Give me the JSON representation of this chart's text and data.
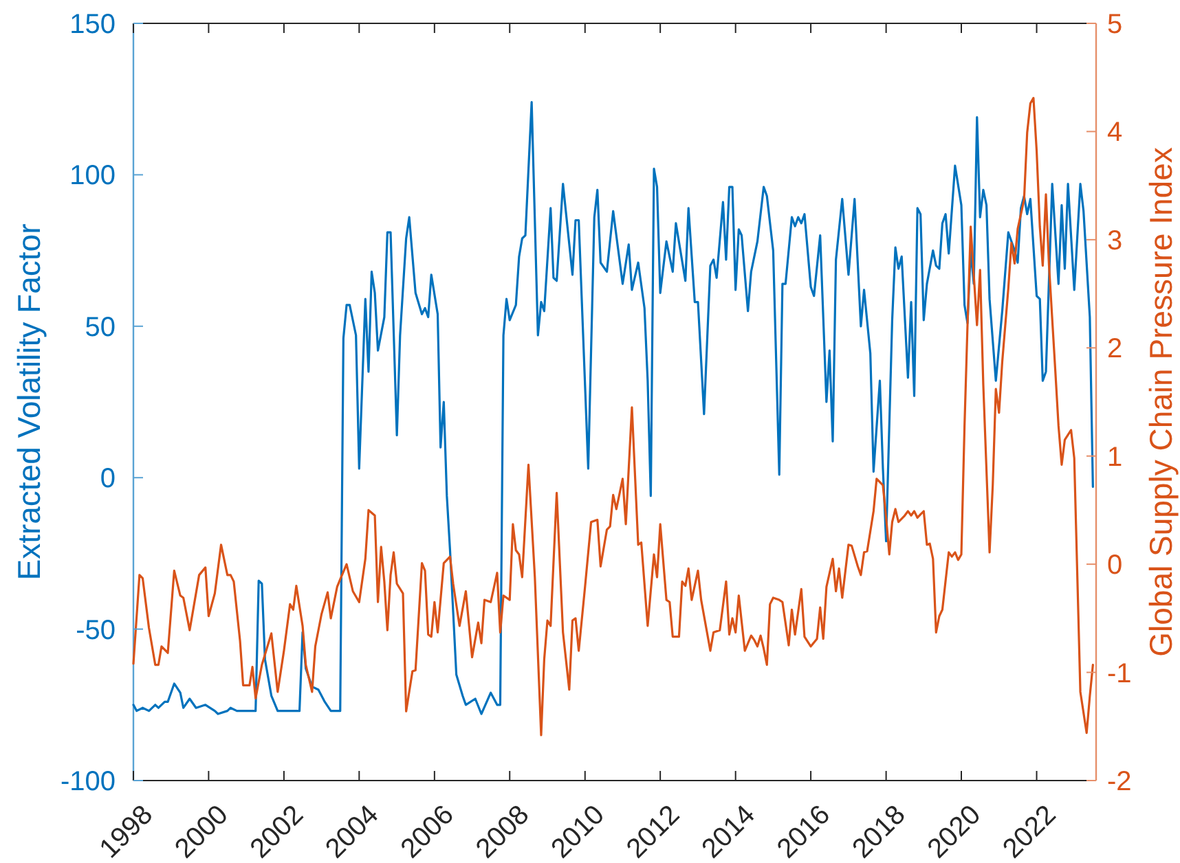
{
  "chart_data": {
    "type": "line",
    "ylabel": "Extracted Volatility Factor",
    "y2label": "Global Supply Chain Pressure Index",
    "xlim": [
      "1998-01",
      "2023-08"
    ],
    "xticks": [
      "1998",
      "2000",
      "2002",
      "2004",
      "2006",
      "2008",
      "2010",
      "2012",
      "2014",
      "2016",
      "2018",
      "2020",
      "2022"
    ],
    "ylim": [
      -100,
      150
    ],
    "yticks": [
      -100,
      -50,
      0,
      50,
      100,
      150
    ],
    "y2lim": [
      -2,
      5
    ],
    "y2ticks": [
      -2,
      -1,
      0,
      1,
      2,
      3,
      4,
      5
    ],
    "series": [
      {
        "color": "#0072bd",
        "x": [
          "1998-01",
          "1998-02",
          "1998-04",
          "1998-06",
          "1998-08",
          "1998-09",
          "1998-11",
          "1998-12",
          "1999-02",
          "1999-04",
          "1999-05",
          "1999-07",
          "1999-09",
          "1999-12",
          "2000-03",
          "2000-04",
          "2000-07",
          "2000-08",
          "2000-10",
          "2001-01",
          "2001-04",
          "2001-05",
          "2001-06",
          "2001-07",
          "2001-09",
          "2001-11",
          "2002-06",
          "2002-07",
          "2002-08",
          "2002-10",
          "2002-12",
          "2003-02",
          "2003-04",
          "2003-07",
          "2003-08",
          "2003-09",
          "2003-10",
          "2003-12",
          "2004-01",
          "2004-03",
          "2004-04",
          "2004-05",
          "2004-06",
          "2004-07",
          "2004-09",
          "2004-10",
          "2004-11",
          "2005-01",
          "2005-02",
          "2005-04",
          "2005-05",
          "2005-07",
          "2005-09",
          "2005-10",
          "2005-11",
          "2005-12",
          "2006-02",
          "2006-03",
          "2006-04",
          "2006-05",
          "2006-06",
          "2006-08",
          "2006-10",
          "2006-11",
          "2007-02",
          "2007-04",
          "2007-07",
          "2007-09",
          "2007-10",
          "2007-11",
          "2007-12",
          "2008-01",
          "2008-03",
          "2008-04",
          "2008-05",
          "2008-06",
          "2008-08",
          "2008-10",
          "2008-11",
          "2008-12",
          "2009-02",
          "2009-03",
          "2009-04",
          "2009-06",
          "2009-09",
          "2009-10",
          "2009-11",
          "2010-02",
          "2010-04",
          "2010-05",
          "2010-06",
          "2010-08",
          "2010-10",
          "2011-01",
          "2011-03",
          "2011-04",
          "2011-06",
          "2011-08",
          "2011-09",
          "2011-10",
          "2011-11",
          "2011-12",
          "2012-01",
          "2012-03",
          "2012-05",
          "2012-06",
          "2012-09",
          "2012-10",
          "2012-12",
          "2013-01",
          "2013-03",
          "2013-05",
          "2013-06",
          "2013-07",
          "2013-09",
          "2013-10",
          "2013-11",
          "2013-12",
          "2014-01",
          "2014-02",
          "2014-03",
          "2014-05",
          "2014-06",
          "2014-08",
          "2014-10",
          "2014-11",
          "2015-01",
          "2015-03",
          "2015-04",
          "2015-05",
          "2015-07",
          "2015-08",
          "2015-09",
          "2015-10",
          "2015-11",
          "2016-01",
          "2016-02",
          "2016-04",
          "2016-06",
          "2016-07",
          "2016-08",
          "2016-09",
          "2016-11",
          "2017-01",
          "2017-03",
          "2017-05",
          "2017-06",
          "2017-08",
          "2017-09",
          "2017-11",
          "2017-12",
          "2018-01",
          "2018-03",
          "2018-04",
          "2018-05",
          "2018-06",
          "2018-08",
          "2018-09",
          "2018-10",
          "2018-11",
          "2018-12",
          "2019-01",
          "2019-02",
          "2019-04",
          "2019-05",
          "2019-06",
          "2019-07",
          "2019-08",
          "2019-09",
          "2019-11",
          "2020-01",
          "2020-02",
          "2020-03",
          "2020-04",
          "2020-05",
          "2020-06",
          "2020-07",
          "2020-08",
          "2020-09",
          "2020-10",
          "2020-12",
          "2021-02",
          "2021-04",
          "2021-06",
          "2021-07",
          "2021-08",
          "2021-09",
          "2021-10",
          "2021-11",
          "2022-01",
          "2022-02",
          "2022-03",
          "2022-04",
          "2022-06",
          "2022-08",
          "2022-09",
          "2022-10",
          "2022-11",
          "2023-01",
          "2023-03",
          "2023-04",
          "2023-06",
          "2023-07"
        ],
        "values": [
          -75,
          -77,
          -76,
          -77,
          -75,
          -76,
          -74,
          -74,
          -68,
          -71,
          -76,
          -73,
          -76,
          -75,
          -77,
          -78,
          -77,
          -76,
          -77,
          -77,
          -77,
          -34,
          -35,
          -60,
          -72,
          -77,
          -77,
          -51,
          -63,
          -69,
          -70,
          -74,
          -77,
          -77,
          46,
          57,
          57,
          47,
          3,
          59,
          35,
          68,
          61,
          42,
          53,
          81,
          81,
          14,
          47,
          79,
          86,
          61,
          54,
          56,
          53,
          67,
          54,
          10,
          25,
          -6,
          -24,
          -65,
          -72,
          -75,
          -73,
          -78,
          -71,
          -75,
          -75,
          47,
          59,
          52,
          57,
          73,
          79,
          80,
          124,
          47,
          58,
          55,
          89,
          66,
          65,
          97,
          67,
          85,
          85,
          3,
          86,
          95,
          71,
          68,
          88,
          64,
          77,
          62,
          71,
          56,
          32,
          -6,
          102,
          96,
          61,
          78,
          68,
          84,
          65,
          89,
          58,
          58,
          21,
          70,
          72,
          66,
          91,
          72,
          96,
          96,
          62,
          82,
          80,
          55,
          68,
          78,
          96,
          93,
          75,
          1,
          64,
          64,
          86,
          83,
          86,
          84,
          87,
          63,
          60,
          80,
          25,
          42,
          12,
          72,
          92,
          67,
          92,
          50,
          62,
          41,
          2,
          32,
          3,
          -21,
          52,
          76,
          69,
          73,
          33,
          58,
          27,
          89,
          87,
          52,
          64,
          75,
          70,
          69,
          84,
          87,
          74,
          103,
          90,
          57,
          51,
          75,
          64,
          119,
          86,
          95,
          90,
          59,
          32,
          55,
          81,
          75,
          71,
          89,
          93,
          87,
          92,
          60,
          59,
          32,
          35,
          97,
          64,
          90,
          69,
          97,
          62,
          97,
          88,
          53,
          -3
        ]
      },
      {
        "color": "#d95319",
        "axis": "y2",
        "x": [
          "1998-01",
          "1998-03",
          "1998-04",
          "1998-06",
          "1998-08",
          "1998-09",
          "1998-10",
          "1998-12",
          "1999-02",
          "1999-04",
          "1999-05",
          "1999-07",
          "1999-10",
          "1999-12",
          "2000-01",
          "2000-03",
          "2000-05",
          "2000-07",
          "2000-08",
          "2000-09",
          "2000-11",
          "2000-12",
          "2001-02",
          "2001-03",
          "2001-04",
          "2001-06",
          "2001-09",
          "2001-11",
          "2002-01",
          "2002-03",
          "2002-04",
          "2002-05",
          "2002-07",
          "2002-08",
          "2002-10",
          "2002-11",
          "2003-01",
          "2003-03",
          "2003-04",
          "2003-06",
          "2003-07",
          "2003-09",
          "2003-11",
          "2004-01",
          "2004-03",
          "2004-04",
          "2004-06",
          "2004-07",
          "2004-08",
          "2004-09",
          "2004-10",
          "2004-11",
          "2004-12",
          "2005-01",
          "2005-03",
          "2005-04",
          "2005-06",
          "2005-07",
          "2005-09",
          "2005-10",
          "2005-11",
          "2005-12",
          "2006-01",
          "2006-02",
          "2006-04",
          "2006-06",
          "2006-07",
          "2006-09",
          "2006-11",
          "2007-01",
          "2007-03",
          "2007-04",
          "2007-05",
          "2007-07",
          "2007-09",
          "2007-10",
          "2007-11",
          "2008-01",
          "2008-02",
          "2008-03",
          "2008-04",
          "2008-05",
          "2008-07",
          "2008-09",
          "2008-11",
          "2008-12",
          "2009-01",
          "2009-02",
          "2009-04",
          "2009-06",
          "2009-08",
          "2009-09",
          "2009-10",
          "2009-11",
          "2010-01",
          "2010-03",
          "2010-05",
          "2010-06",
          "2010-08",
          "2010-09",
          "2010-10",
          "2010-11",
          "2011-01",
          "2011-02",
          "2011-04",
          "2011-06",
          "2011-07",
          "2011-09",
          "2011-11",
          "2011-12",
          "2012-01",
          "2012-03",
          "2012-04",
          "2012-05",
          "2012-07",
          "2012-08",
          "2012-09",
          "2012-10",
          "2012-11",
          "2013-01",
          "2013-02",
          "2013-05",
          "2013-06",
          "2013-08",
          "2013-10",
          "2013-11",
          "2013-12",
          "2014-01",
          "2014-02",
          "2014-04",
          "2014-06",
          "2014-07",
          "2014-08",
          "2014-09",
          "2014-10",
          "2014-11",
          "2014-12",
          "2015-01",
          "2015-03",
          "2015-04",
          "2015-06",
          "2015-07",
          "2015-08",
          "2015-10",
          "2015-11",
          "2016-01",
          "2016-03",
          "2016-04",
          "2016-05",
          "2016-06",
          "2016-08",
          "2016-09",
          "2016-10",
          "2016-11",
          "2017-01",
          "2017-02",
          "2017-04",
          "2017-05",
          "2017-06",
          "2017-07",
          "2017-09",
          "2017-10",
          "2017-12",
          "2018-01",
          "2018-02",
          "2018-03",
          "2018-04",
          "2018-05",
          "2018-07",
          "2018-08",
          "2018-09",
          "2018-10",
          "2018-11",
          "2018-12",
          "2019-01",
          "2019-02",
          "2019-03",
          "2019-04",
          "2019-05",
          "2019-06",
          "2019-07",
          "2019-09",
          "2019-10",
          "2019-11",
          "2019-12",
          "2020-01",
          "2020-02",
          "2020-03",
          "2020-04",
          "2020-05",
          "2020-06",
          "2020-07",
          "2020-08",
          "2020-10",
          "2020-11",
          "2020-12",
          "2021-01",
          "2021-02",
          "2021-04",
          "2021-05",
          "2021-06",
          "2021-07",
          "2021-09",
          "2021-10",
          "2021-11",
          "2021-12",
          "2022-01",
          "2022-02",
          "2022-03",
          "2022-04",
          "2022-05",
          "2022-07",
          "2022-08",
          "2022-09",
          "2022-10",
          "2022-12",
          "2023-01",
          "2023-03",
          "2023-05",
          "2023-06",
          "2023-07"
        ],
        "values": [
          -0.92,
          -0.1,
          -0.13,
          -0.59,
          -0.93,
          -0.93,
          -0.76,
          -0.82,
          -0.06,
          -0.29,
          -0.31,
          -0.61,
          -0.1,
          -0.03,
          -0.48,
          -0.27,
          0.18,
          -0.1,
          -0.1,
          -0.16,
          -0.71,
          -1.12,
          -1.12,
          -0.95,
          -1.24,
          -0.93,
          -0.64,
          -1.18,
          -0.8,
          -0.37,
          -0.42,
          -0.2,
          -0.57,
          -0.93,
          -1.18,
          -0.76,
          -0.46,
          -0.26,
          -0.5,
          -0.21,
          -0.14,
          0.0,
          -0.25,
          -0.35,
          0.05,
          0.5,
          0.45,
          -0.35,
          0.16,
          -0.16,
          -0.61,
          -0.1,
          0.11,
          -0.18,
          -0.27,
          -1.36,
          -0.99,
          -0.98,
          0.01,
          -0.06,
          -0.65,
          -0.67,
          -0.35,
          -0.63,
          0.01,
          0.07,
          -0.18,
          -0.57,
          -0.25,
          -0.86,
          -0.54,
          -0.73,
          -0.33,
          -0.35,
          -0.08,
          -0.63,
          -0.29,
          -0.33,
          0.37,
          0.13,
          0.09,
          -0.12,
          0.92,
          -0.12,
          -1.58,
          -0.88,
          -0.52,
          -0.57,
          0.66,
          -0.63,
          -1.16,
          -0.52,
          -0.5,
          -0.8,
          -0.21,
          0.39,
          0.41,
          -0.02,
          0.32,
          0.35,
          0.64,
          0.51,
          0.79,
          0.37,
          1.45,
          0.18,
          0.2,
          -0.57,
          0.09,
          -0.12,
          0.37,
          -0.33,
          -0.35,
          -0.67,
          -0.67,
          -0.16,
          -0.2,
          -0.04,
          -0.33,
          -0.06,
          -0.33,
          -0.8,
          -0.63,
          -0.61,
          -0.16,
          -0.65,
          -0.5,
          -0.63,
          -0.29,
          -0.8,
          -0.66,
          -0.7,
          -0.76,
          -0.66,
          -0.78,
          -0.93,
          -0.37,
          -0.31,
          -0.33,
          -0.35,
          -0.75,
          -0.42,
          -0.65,
          -0.23,
          -0.67,
          -0.76,
          -0.69,
          -0.4,
          -0.69,
          -0.21,
          0.05,
          -0.25,
          -0.04,
          -0.31,
          0.18,
          0.17,
          -0.02,
          -0.1,
          0.11,
          0.12,
          0.49,
          0.79,
          0.73,
          0.43,
          0.09,
          0.39,
          0.51,
          0.39,
          0.45,
          0.49,
          0.45,
          0.49,
          0.43,
          0.46,
          0.49,
          0.18,
          0.19,
          0.05,
          -0.63,
          -0.48,
          -0.42,
          0.11,
          0.07,
          0.11,
          0.04,
          0.09,
          1.28,
          2.21,
          3.12,
          2.67,
          2.21,
          2.72,
          1.66,
          0.11,
          0.73,
          1.62,
          1.4,
          1.87,
          2.55,
          2.97,
          2.78,
          3.1,
          3.37,
          3.99,
          4.26,
          4.31,
          3.82,
          3.12,
          2.76,
          3.42,
          2.76,
          1.79,
          1.28,
          0.92,
          1.15,
          1.24,
          0.98,
          -1.18,
          -1.56,
          -1.22,
          -0.93
        ]
      }
    ]
  }
}
